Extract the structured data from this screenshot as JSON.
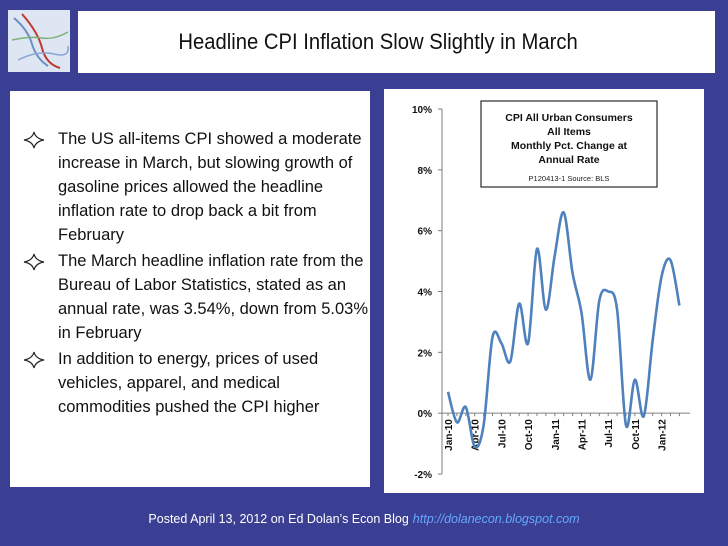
{
  "title": "Headline CPI Inflation Slow Slightly in March",
  "bullets": [
    "The US all-items CPI showed a moderate increase in March, but slowing growth of gasoline prices allowed the headline inflation rate to drop back a bit from February",
    "The March headline inflation rate from the Bureau of Labor Statistics, stated as an annual rate, was 3.54%, down from 5.03% in February",
    "In addition to energy, prices of used vehicles, apparel, and medical commodities pushed the CPI higher"
  ],
  "footer": {
    "text": "Posted April 13, 2012 on Ed Dolan’s Econ Blog",
    "url": "http://dolanecon.blogspot.com"
  },
  "chart_data": {
    "type": "line",
    "title_lines": [
      "CPI All Urban Consumers",
      "All Items",
      "Monthly Pct. Change at",
      "Annual Rate"
    ],
    "source": "P120413-1 Source: BLS",
    "x_tick_labels": [
      "Jan-10",
      "Apr-10",
      "Jul-10",
      "Oct-10",
      "Jan-11",
      "Apr-11",
      "Jul-11",
      "Oct-11",
      "Jan-12"
    ],
    "y_tick_labels": [
      "-2%",
      "0%",
      "2%",
      "4%",
      "6%",
      "8%",
      "10%"
    ],
    "ylim": [
      -2,
      10
    ],
    "grid": false,
    "series": [
      {
        "color": "#4f81bd",
        "x": [
          "Jan-10",
          "Feb-10",
          "Mar-10",
          "Apr-10",
          "May-10",
          "Jun-10",
          "Jul-10",
          "Aug-10",
          "Sep-10",
          "Oct-10",
          "Nov-10",
          "Dec-10",
          "Jan-11",
          "Feb-11",
          "Mar-11",
          "Apr-11",
          "May-11",
          "Jun-11",
          "Jul-11",
          "Aug-11",
          "Sep-11",
          "Oct-11",
          "Nov-11",
          "Dec-11",
          "Jan-12",
          "Feb-12",
          "Mar-12"
        ],
        "values": [
          0.7,
          -0.3,
          0.2,
          -1.1,
          -0.4,
          2.5,
          2.3,
          1.7,
          3.6,
          2.3,
          5.4,
          3.4,
          5.2,
          6.6,
          4.6,
          3.3,
          1.1,
          3.7,
          4.0,
          3.4,
          -0.4,
          1.1,
          -0.1,
          2.4,
          4.5,
          5.03,
          3.54
        ]
      }
    ]
  }
}
